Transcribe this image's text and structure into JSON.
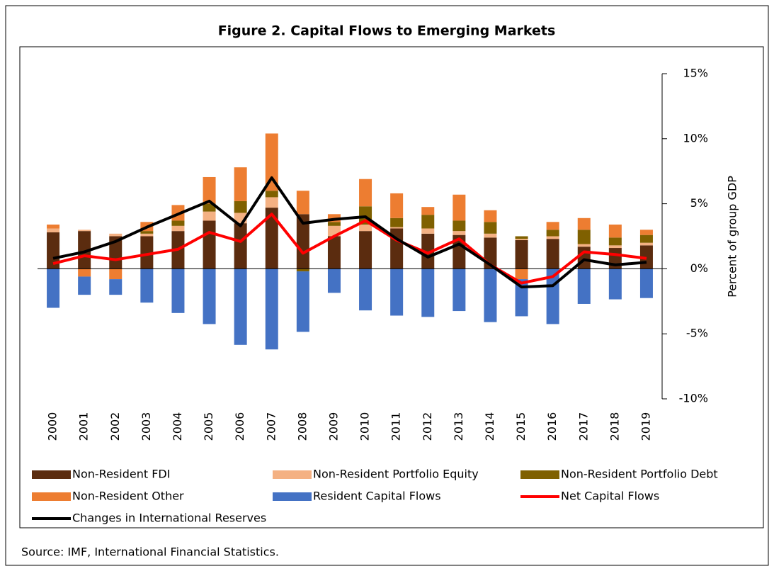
{
  "chart_data": {
    "type": "bar",
    "title": "Figure 2. Capital Flows to Emerging Markets",
    "y_label": "Percent of group GDP",
    "source": "Source: IMF, International Financial Statistics.",
    "categories": [
      "2000",
      "2001",
      "2002",
      "2003",
      "2004",
      "2005",
      "2006",
      "2007",
      "2008",
      "2009",
      "2010",
      "2011",
      "2012",
      "2013",
      "2014",
      "2015",
      "2016",
      "2017",
      "2018",
      "2019"
    ],
    "ylim": [
      -10,
      15
    ],
    "yticks": [
      {
        "value": -10,
        "label": "-10%"
      },
      {
        "value": -5,
        "label": "-5%"
      },
      {
        "value": 0,
        "label": "0%"
      },
      {
        "value": 5,
        "label": "5%"
      },
      {
        "value": 10,
        "label": "10%"
      },
      {
        "value": 15,
        "label": "15%"
      }
    ],
    "stacked": true,
    "series": [
      {
        "name": "Non-Resident FDI",
        "color": "#5b2c0f",
        "values": [
          2.8,
          2.9,
          2.5,
          2.5,
          2.9,
          3.7,
          3.5,
          4.7,
          4.2,
          2.5,
          2.9,
          3.1,
          2.7,
          2.6,
          2.4,
          2.2,
          2.3,
          1.7,
          1.6,
          1.8
        ]
      },
      {
        "name": "Non-Resident Portfolio Equity",
        "color": "#f4b183",
        "values": [
          0.3,
          0.1,
          0.2,
          0.2,
          0.4,
          0.7,
          0.8,
          0.8,
          0,
          0.8,
          0.5,
          0.1,
          0.4,
          0.3,
          0.3,
          0.1,
          0.2,
          0.2,
          0.2,
          0.2
        ]
      },
      {
        "name": "Non-Resident Portfolio Debt",
        "color": "#7f6000",
        "values": [
          0,
          0,
          0,
          0.2,
          0.4,
          0.6,
          0.9,
          0.5,
          -0.2,
          0.3,
          1.4,
          0.7,
          1.05,
          0.8,
          0.9,
          0.2,
          0.5,
          1.1,
          0.6,
          0.6
        ]
      },
      {
        "name": "Non-Resident Other",
        "color": "#ed7d31",
        "values": [
          0.3,
          -0.6,
          -0.8,
          0.7,
          1.2,
          2.05,
          2.6,
          4.4,
          1.8,
          0.6,
          2.1,
          1.9,
          0.6,
          2.0,
          0.9,
          -0.8,
          0.6,
          0.9,
          1.0,
          0.4
        ]
      },
      {
        "name": "Resident Capital Flows",
        "color": "#4472c4",
        "values": [
          -3.0,
          -1.4,
          -1.2,
          -2.6,
          -3.4,
          -4.25,
          -5.85,
          -6.2,
          -4.65,
          -1.85,
          -3.2,
          -3.6,
          -3.7,
          -3.25,
          -4.1,
          -2.85,
          -4.25,
          -2.7,
          -2.35,
          -2.25
        ]
      },
      {
        "name": "Net Capital Flows",
        "type": "line",
        "color": "#ff0000",
        "values": [
          0.4,
          1.0,
          0.7,
          1.1,
          1.5,
          2.8,
          2.1,
          4.2,
          1.2,
          2.5,
          3.7,
          2.2,
          1.2,
          2.3,
          0.3,
          -1.1,
          -0.6,
          1.3,
          1.1,
          0.8
        ]
      },
      {
        "name": "Changes in International Reserves",
        "type": "line",
        "color": "#000000",
        "values": [
          0.8,
          1.3,
          2.1,
          3.2,
          4.2,
          5.2,
          3.3,
          7.0,
          3.5,
          3.8,
          4.0,
          2.3,
          0.9,
          1.9,
          0.3,
          -1.4,
          -1.3,
          0.7,
          0.3,
          0.5
        ]
      }
    ]
  }
}
